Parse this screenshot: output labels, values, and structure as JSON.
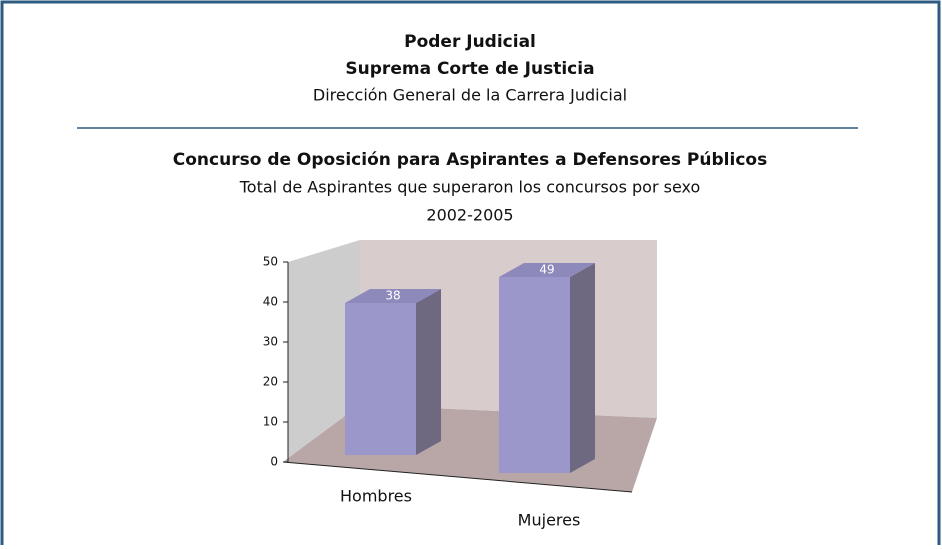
{
  "header": {
    "title": "Poder Judicial",
    "subtitle": "Suprema Corte de Justicia",
    "department": "Dirección General de la Carrera Judicial"
  },
  "chart_data": {
    "type": "bar3d",
    "title": "Concurso de Oposición para Aspirantes a Defensores Públicos",
    "subtitle": "Total de Aspirantes que superaron los concursos por sexo",
    "period": "2002-2005",
    "categories": [
      "Hombres",
      "Mujeres"
    ],
    "values": [
      38,
      49
    ],
    "color": "#9b97cb",
    "ylim": [
      0,
      50
    ],
    "yticks": [
      0,
      10,
      20,
      30,
      40,
      50
    ]
  }
}
